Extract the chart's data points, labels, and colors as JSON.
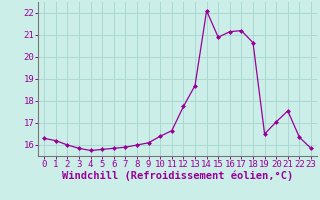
{
  "x": [
    0,
    1,
    2,
    3,
    4,
    5,
    6,
    7,
    8,
    9,
    10,
    11,
    12,
    13,
    14,
    15,
    16,
    17,
    18,
    19,
    20,
    21,
    22,
    23
  ],
  "y": [
    16.3,
    16.2,
    16.0,
    15.85,
    15.75,
    15.8,
    15.85,
    15.9,
    16.0,
    16.1,
    16.4,
    16.65,
    17.75,
    18.7,
    22.1,
    20.9,
    21.15,
    21.2,
    20.65,
    16.5,
    17.05,
    17.55,
    16.35,
    15.85
  ],
  "color": "#990099",
  "bg_color": "#cceee8",
  "grid_color": "#aad8d0",
  "xlabel": "Windchill (Refroidissement éolien,°C)",
  "ylim": [
    15.5,
    22.5
  ],
  "xlim": [
    -0.5,
    23.5
  ],
  "yticks": [
    16,
    17,
    18,
    19,
    20,
    21,
    22
  ],
  "xticks": [
    0,
    1,
    2,
    3,
    4,
    5,
    6,
    7,
    8,
    9,
    10,
    11,
    12,
    13,
    14,
    15,
    16,
    17,
    18,
    19,
    20,
    21,
    22,
    23
  ],
  "marker": "D",
  "markersize": 2.0,
  "linewidth": 0.9,
  "xlabel_fontsize": 7.5,
  "tick_fontsize": 6.5,
  "spine_color": "#777777"
}
